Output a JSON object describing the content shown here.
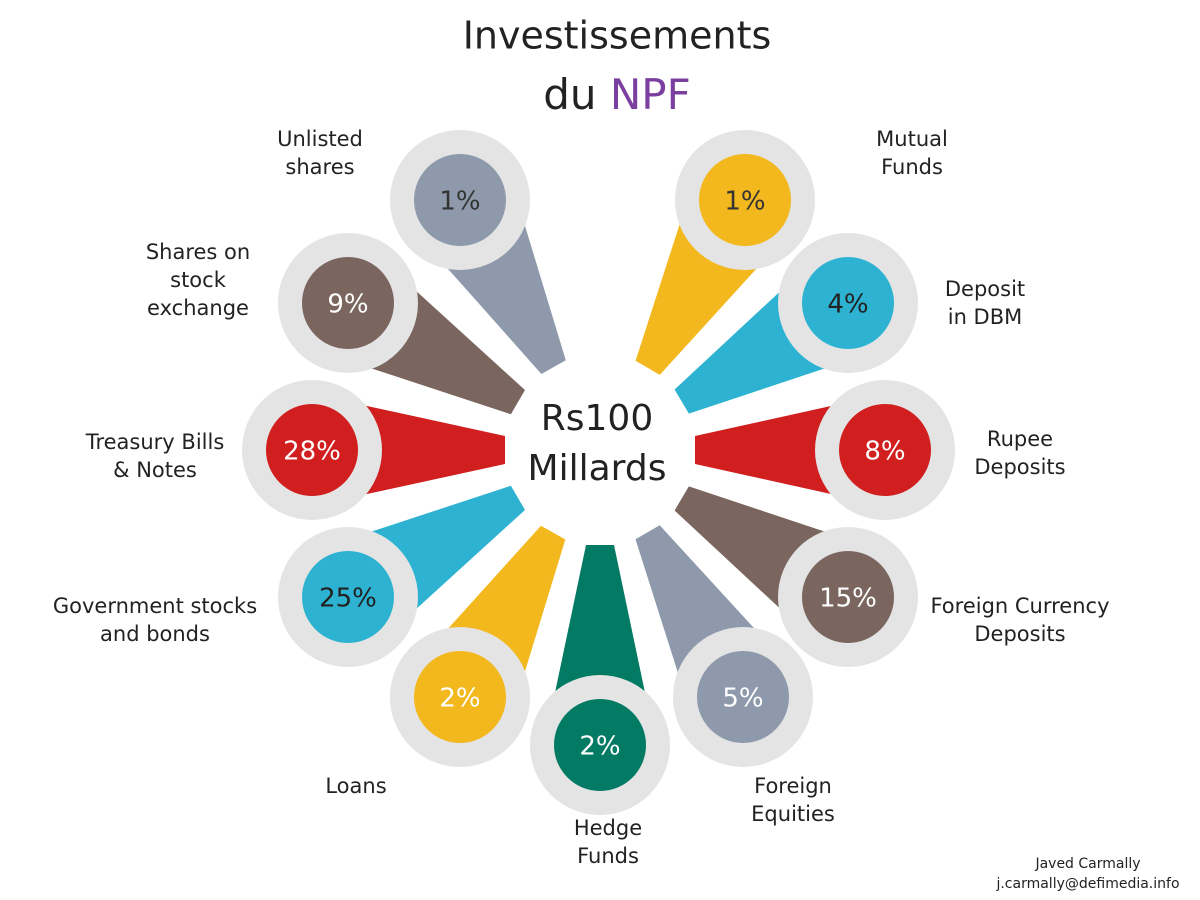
{
  "chart_data": {
    "type": "radial",
    "title": {
      "line1": "Investissements",
      "line2": "du",
      "highlight": "NPF"
    },
    "center_label": [
      "Rs100",
      "Millards"
    ],
    "categories": [
      [
        "Unlisted",
        "shares"
      ],
      [
        "Mutual",
        "Funds"
      ],
      [
        "Deposit",
        "in DBM"
      ],
      [
        "Rupee",
        "Deposits"
      ],
      [
        "Foreign Currency",
        "Deposits"
      ],
      [
        "Foreign",
        "Equities"
      ],
      [
        "Hedge",
        "Funds"
      ],
      [
        "Loans"
      ],
      [
        "Government stocks",
        "and bonds"
      ],
      [
        "Treasury Bills",
        "& Notes"
      ],
      [
        "Shares on",
        "stock",
        "exchange"
      ]
    ],
    "values": [
      1,
      1,
      4,
      8,
      15,
      5,
      2,
      2,
      25,
      28,
      9
    ],
    "value_labels": [
      "1%",
      "1%",
      "4%",
      "8%",
      "15%",
      "5%",
      "2%",
      "2%",
      "25%",
      "28%",
      "9%"
    ],
    "colors": [
      "#8e9aab",
      "#f2b81e",
      "#2db3d1",
      "#d11f1f",
      "#7a665f",
      "#8e9aab",
      "#037a64",
      "#f2b81e",
      "#2db3d1",
      "#d11f1f",
      "#7a665f"
    ],
    "credit": [
      "Javed Carmally",
      "j.carmally@defimedia.info"
    ]
  }
}
